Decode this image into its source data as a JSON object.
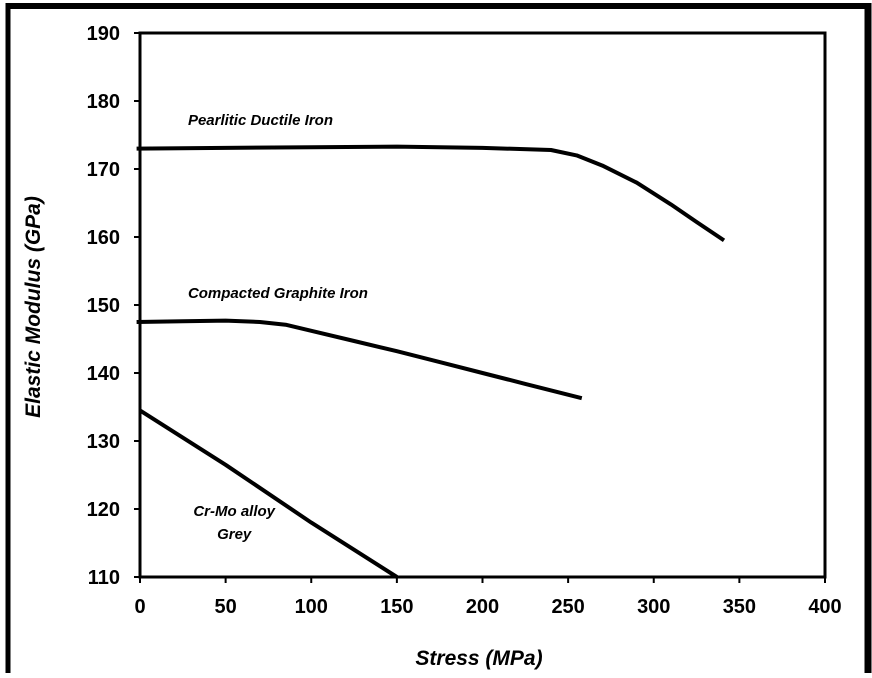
{
  "chart_data": {
    "type": "line",
    "title": "",
    "xlabel": "Stress (MPa)",
    "ylabel": "Elastic Modulus (GPa)",
    "xlim": [
      0,
      400
    ],
    "ylim": [
      110,
      190
    ],
    "x_ticks": [
      0,
      50,
      100,
      150,
      200,
      250,
      300,
      350,
      400
    ],
    "y_ticks": [
      110,
      120,
      130,
      140,
      150,
      160,
      170,
      180,
      190
    ],
    "grid": false,
    "legend": "none",
    "series": [
      {
        "name": "Pearlitic Ductile Iron",
        "label_lines": [
          "Pearlitic Ductile Iron"
        ],
        "label_at": [
          28,
          176.5
        ],
        "points": [
          [
            -2,
            173
          ],
          [
            50,
            173.1
          ],
          [
            100,
            173.2
          ],
          [
            150,
            173.3
          ],
          [
            200,
            173.1
          ],
          [
            240,
            172.8
          ],
          [
            255,
            172.0
          ],
          [
            270,
            170.5
          ],
          [
            290,
            168.0
          ],
          [
            310,
            164.8
          ],
          [
            325,
            162.2
          ],
          [
            341,
            159.5
          ]
        ]
      },
      {
        "name": "Compacted Graphite Iron",
        "label_lines": [
          "Compacted Graphite Iron"
        ],
        "label_at": [
          28,
          151.0
        ],
        "points": [
          [
            -2,
            147.5
          ],
          [
            25,
            147.6
          ],
          [
            50,
            147.7
          ],
          [
            70,
            147.5
          ],
          [
            85,
            147.1
          ],
          [
            100,
            146.2
          ],
          [
            125,
            144.7
          ],
          [
            150,
            143.2
          ],
          [
            175,
            141.6
          ],
          [
            200,
            140.0
          ],
          [
            225,
            138.4
          ],
          [
            258,
            136.3
          ]
        ]
      },
      {
        "name": "Cr-Mo alloy Grey",
        "label_lines": [
          "Cr-Mo alloy",
          "Grey"
        ],
        "label_at": [
          55,
          119.0
        ],
        "points": [
          [
            0,
            134.5
          ],
          [
            50,
            126.5
          ],
          [
            100,
            118.0
          ],
          [
            150,
            110.0
          ]
        ]
      }
    ]
  }
}
